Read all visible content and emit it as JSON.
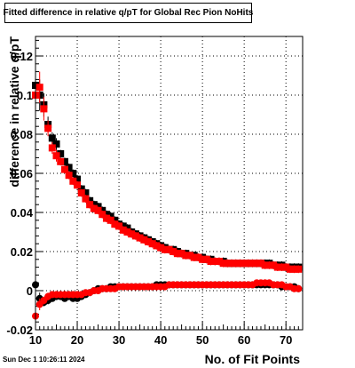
{
  "chart_data": {
    "type": "scatter",
    "title": "Fitted difference in relative q/pT for Global Rec Pion NoHits",
    "xlabel": "No. of Fit Points",
    "ylabel": "difference in relative q/pT",
    "xlim": [
      10,
      74
    ],
    "ylim": [
      -0.02,
      0.13
    ],
    "xticks": [
      10,
      20,
      30,
      40,
      50,
      60,
      70
    ],
    "yticks": [
      -0.02,
      0,
      0.02,
      0.04,
      0.06,
      0.08,
      0.1,
      0.12
    ],
    "ytick_labels": [
      "-0.02",
      "0",
      "0.02",
      "0.04",
      "0.06",
      "0.08",
      "0.1",
      "0.12"
    ],
    "grid": true,
    "series": [
      {
        "marker": "square",
        "color": "#000000",
        "x": [
          10,
          11,
          12,
          13,
          14,
          15,
          16,
          17,
          18,
          19,
          20,
          21,
          22,
          23,
          24,
          25,
          26,
          27,
          28,
          29,
          30,
          31,
          32,
          33,
          34,
          35,
          36,
          37,
          38,
          39,
          40,
          41,
          42,
          43,
          44,
          45,
          46,
          47,
          48,
          49,
          50,
          51,
          52,
          53,
          54,
          55,
          56,
          57,
          58,
          59,
          60,
          61,
          62,
          63,
          64,
          65,
          66,
          67,
          68,
          69,
          70,
          71,
          72,
          73
        ],
        "y": [
          0.105,
          0.1,
          0.095,
          0.085,
          0.078,
          0.075,
          0.07,
          0.066,
          0.063,
          0.06,
          0.057,
          0.052,
          0.05,
          0.046,
          0.044,
          0.043,
          0.041,
          0.039,
          0.038,
          0.036,
          0.034,
          0.033,
          0.032,
          0.03,
          0.029,
          0.028,
          0.027,
          0.026,
          0.025,
          0.024,
          0.023,
          0.022,
          0.021,
          0.021,
          0.02,
          0.019,
          0.019,
          0.018,
          0.018,
          0.017,
          0.017,
          0.016,
          0.016,
          0.015,
          0.015,
          0.015,
          0.014,
          0.014,
          0.014,
          0.014,
          0.014,
          0.014,
          0.014,
          0.014,
          0.014,
          0.014,
          0.014,
          0.013,
          0.013,
          0.013,
          0.012,
          0.012,
          0.012,
          0.012
        ],
        "err": [
          0.01,
          0.008,
          0.006,
          0.004,
          0.003,
          0.003,
          0.002,
          0.002,
          0.002,
          0.002,
          0.002,
          0.002,
          0.002,
          0.002,
          0.002,
          0.002,
          0.002,
          0.002,
          0.002,
          0.002,
          0.002,
          0.002,
          0.002,
          0.002,
          0.002,
          0.002,
          0.002,
          0.002,
          0.002,
          0.002,
          0.002,
          0.002,
          0.002,
          0.002,
          0.002,
          0.002,
          0.002,
          0.002,
          0.002,
          0.002,
          0.002,
          0.002,
          0.002,
          0.002,
          0.002,
          0.002,
          0.002,
          0.002,
          0.002,
          0.002,
          0.002,
          0.002,
          0.002,
          0.002,
          0.002,
          0.002,
          0.002,
          0.002,
          0.002,
          0.002,
          0.002,
          0.002,
          0.002,
          0.002
        ]
      },
      {
        "marker": "square",
        "color": "#ff0000",
        "x": [
          10,
          11,
          12,
          13,
          14,
          15,
          16,
          17,
          18,
          19,
          20,
          21,
          22,
          23,
          24,
          25,
          26,
          27,
          28,
          29,
          30,
          31,
          32,
          33,
          34,
          35,
          36,
          37,
          38,
          39,
          40,
          41,
          42,
          43,
          44,
          45,
          46,
          47,
          48,
          49,
          50,
          51,
          52,
          53,
          54,
          55,
          56,
          57,
          58,
          59,
          60,
          61,
          62,
          63,
          64,
          65,
          66,
          67,
          68,
          69,
          70,
          71,
          72,
          73
        ],
        "y": [
          0.1,
          0.104,
          0.093,
          0.083,
          0.073,
          0.069,
          0.066,
          0.062,
          0.059,
          0.056,
          0.054,
          0.05,
          0.047,
          0.044,
          0.042,
          0.041,
          0.039,
          0.037,
          0.036,
          0.034,
          0.033,
          0.031,
          0.03,
          0.029,
          0.028,
          0.027,
          0.026,
          0.025,
          0.024,
          0.023,
          0.022,
          0.021,
          0.021,
          0.02,
          0.019,
          0.019,
          0.018,
          0.018,
          0.017,
          0.017,
          0.016,
          0.016,
          0.015,
          0.015,
          0.015,
          0.014,
          0.014,
          0.014,
          0.014,
          0.014,
          0.014,
          0.014,
          0.014,
          0.014,
          0.014,
          0.013,
          0.013,
          0.013,
          0.012,
          0.012,
          0.012,
          0.011,
          0.011,
          0.011
        ],
        "err": [
          0.012,
          0.008,
          0.006,
          0.004,
          0.003,
          0.003,
          0.002,
          0.002,
          0.002,
          0.002,
          0.002,
          0.002,
          0.002,
          0.002,
          0.002,
          0.002,
          0.002,
          0.002,
          0.002,
          0.002,
          0.002,
          0.002,
          0.002,
          0.002,
          0.002,
          0.002,
          0.002,
          0.002,
          0.002,
          0.002,
          0.002,
          0.002,
          0.002,
          0.002,
          0.002,
          0.002,
          0.002,
          0.002,
          0.002,
          0.002,
          0.002,
          0.002,
          0.002,
          0.002,
          0.002,
          0.002,
          0.002,
          0.002,
          0.002,
          0.002,
          0.002,
          0.002,
          0.002,
          0.002,
          0.002,
          0.002,
          0.002,
          0.002,
          0.002,
          0.002,
          0.002,
          0.002,
          0.002,
          0.002
        ]
      },
      {
        "marker": "circle",
        "color": "#000000",
        "x": [
          10,
          11,
          12,
          13,
          14,
          15,
          16,
          17,
          18,
          19,
          20,
          21,
          22,
          23,
          24,
          25,
          26,
          27,
          28,
          29,
          30,
          31,
          32,
          33,
          34,
          35,
          36,
          37,
          38,
          39,
          40,
          41,
          42,
          43,
          44,
          45,
          46,
          47,
          48,
          49,
          50,
          51,
          52,
          53,
          54,
          55,
          56,
          57,
          58,
          59,
          60,
          61,
          62,
          63,
          64,
          65,
          66,
          67,
          68,
          69,
          70,
          71,
          72,
          73
        ],
        "y": [
          0.003,
          -0.004,
          -0.006,
          -0.005,
          -0.004,
          -0.003,
          -0.003,
          -0.004,
          -0.003,
          -0.004,
          -0.004,
          -0.003,
          -0.002,
          -0.001,
          0.0,
          0.001,
          0.001,
          0.001,
          0.002,
          0.002,
          0.002,
          0.002,
          0.002,
          0.002,
          0.002,
          0.002,
          0.002,
          0.002,
          0.002,
          0.003,
          0.003,
          0.003,
          0.003,
          0.003,
          0.003,
          0.003,
          0.003,
          0.003,
          0.003,
          0.003,
          0.003,
          0.003,
          0.003,
          0.003,
          0.003,
          0.003,
          0.003,
          0.003,
          0.003,
          0.003,
          0.003,
          0.003,
          0.003,
          0.003,
          0.003,
          0.003,
          0.003,
          0.003,
          0.003,
          0.002,
          0.002,
          0.002,
          0.002,
          0.001
        ],
        "err": [
          0.004,
          0.003,
          0.002,
          0.002,
          0.001,
          0.001,
          0.001,
          0.001,
          0.001,
          0.001,
          0.001,
          0.001,
          0.001,
          0.001,
          0.001,
          0.001,
          0.001,
          0.001,
          0.001,
          0.001,
          0.001,
          0.001,
          0.001,
          0.001,
          0.001,
          0.001,
          0.001,
          0.001,
          0.001,
          0.001,
          0.001,
          0.001,
          0.001,
          0.001,
          0.001,
          0.001,
          0.001,
          0.001,
          0.001,
          0.001,
          0.001,
          0.001,
          0.001,
          0.001,
          0.001,
          0.001,
          0.001,
          0.001,
          0.001,
          0.001,
          0.001,
          0.001,
          0.001,
          0.001,
          0.001,
          0.001,
          0.001,
          0.001,
          0.001,
          0.001,
          0.001,
          0.001,
          0.001,
          0.001
        ]
      },
      {
        "marker": "circle",
        "color": "#ff0000",
        "x": [
          10,
          11,
          12,
          13,
          14,
          15,
          16,
          17,
          18,
          19,
          20,
          21,
          22,
          23,
          24,
          25,
          26,
          27,
          28,
          29,
          30,
          31,
          32,
          33,
          34,
          35,
          36,
          37,
          38,
          39,
          40,
          41,
          42,
          43,
          44,
          45,
          46,
          47,
          48,
          49,
          50,
          51,
          52,
          53,
          54,
          55,
          56,
          57,
          58,
          59,
          60,
          61,
          62,
          63,
          64,
          65,
          66,
          67,
          68,
          69,
          70,
          71,
          72,
          73
        ],
        "y": [
          -0.013,
          -0.007,
          -0.005,
          -0.003,
          -0.002,
          -0.002,
          -0.002,
          -0.002,
          -0.002,
          -0.002,
          -0.002,
          -0.002,
          -0.001,
          -0.001,
          0.0,
          0.0,
          0.001,
          0.001,
          0.001,
          0.001,
          0.002,
          0.002,
          0.002,
          0.002,
          0.002,
          0.002,
          0.002,
          0.002,
          0.002,
          0.002,
          0.002,
          0.002,
          0.003,
          0.003,
          0.003,
          0.003,
          0.003,
          0.003,
          0.003,
          0.003,
          0.003,
          0.003,
          0.003,
          0.003,
          0.003,
          0.003,
          0.003,
          0.003,
          0.003,
          0.003,
          0.003,
          0.003,
          0.003,
          0.004,
          0.004,
          0.004,
          0.004,
          0.003,
          0.003,
          0.003,
          0.002,
          0.002,
          0.001,
          0.001
        ],
        "err": [
          0.004,
          0.003,
          0.002,
          0.002,
          0.001,
          0.001,
          0.001,
          0.001,
          0.001,
          0.001,
          0.001,
          0.001,
          0.001,
          0.001,
          0.001,
          0.001,
          0.001,
          0.001,
          0.001,
          0.001,
          0.001,
          0.001,
          0.001,
          0.001,
          0.001,
          0.001,
          0.001,
          0.001,
          0.001,
          0.001,
          0.001,
          0.001,
          0.001,
          0.001,
          0.001,
          0.001,
          0.001,
          0.001,
          0.001,
          0.001,
          0.001,
          0.001,
          0.001,
          0.001,
          0.001,
          0.001,
          0.001,
          0.001,
          0.001,
          0.001,
          0.001,
          0.001,
          0.001,
          0.001,
          0.001,
          0.001,
          0.001,
          0.001,
          0.001,
          0.001,
          0.001,
          0.001,
          0.001,
          0.001
        ]
      }
    ]
  },
  "footer": {
    "timestamp": "Sun Dec  1 10:26:11 2024"
  }
}
